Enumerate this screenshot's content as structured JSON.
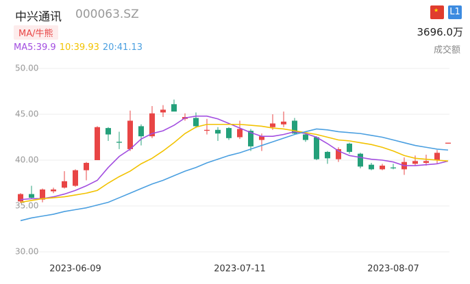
{
  "header": {
    "name": "中兴通讯",
    "code": "000063.SZ",
    "badge": "MA/牛熊",
    "level": "L1",
    "volume": "3696.0万",
    "volume_label": "成交额"
  },
  "chart_data": {
    "type": "candlestick",
    "categories": [
      null,
      null,
      null,
      null,
      null,
      "2023-06-09",
      null,
      null,
      null,
      null,
      null,
      null,
      null,
      null,
      null,
      null,
      null,
      null,
      null,
      null,
      "2023-07-11",
      null,
      null,
      null,
      null,
      null,
      null,
      null,
      null,
      null,
      null,
      null,
      null,
      null,
      "2023-08-07",
      null,
      null,
      null,
      null,
      null
    ],
    "up_color": "#e84545",
    "down_color": "#24a07a",
    "ohlc": [
      [
        35.5,
        36.4,
        35.3,
        36.3
      ],
      [
        36.3,
        37.2,
        35.8,
        35.9
      ],
      [
        35.7,
        36.9,
        35.4,
        36.8
      ],
      [
        36.6,
        37.0,
        36.4,
        36.8
      ],
      [
        37.0,
        38.8,
        36.9,
        37.7
      ],
      [
        37.2,
        39.0,
        37.1,
        38.9
      ],
      [
        38.9,
        39.8,
        37.8,
        39.7
      ],
      [
        40.0,
        43.7,
        40.0,
        43.6
      ],
      [
        43.5,
        43.6,
        42.1,
        42.8
      ],
      [
        42.0,
        43.1,
        41.2,
        41.9
      ],
      [
        41.2,
        45.4,
        41.0,
        44.3
      ],
      [
        43.7,
        43.9,
        41.6,
        42.6
      ],
      [
        42.6,
        45.9,
        42.4,
        45.1
      ],
      [
        45.2,
        46.0,
        44.7,
        45.5
      ],
      [
        46.1,
        46.6,
        45.3,
        45.3
      ],
      [
        44.5,
        45.1,
        44.3,
        44.7
      ],
      [
        44.6,
        45.2,
        43.5,
        43.7
      ],
      [
        43.2,
        44.5,
        42.8,
        43.3
      ],
      [
        43.3,
        43.6,
        42.1,
        42.9
      ],
      [
        43.5,
        43.6,
        42.2,
        42.4
      ],
      [
        42.5,
        44.3,
        42.3,
        43.4
      ],
      [
        43.2,
        43.4,
        41.0,
        41.5
      ],
      [
        42.2,
        42.9,
        41.0,
        42.6
      ],
      [
        43.6,
        45.0,
        43.3,
        44.0
      ],
      [
        43.9,
        45.3,
        43.6,
        44.2
      ],
      [
        44.3,
        44.6,
        42.8,
        42.9
      ],
      [
        42.8,
        43.0,
        42.0,
        42.2
      ],
      [
        42.5,
        42.6,
        40.0,
        40.1
      ],
      [
        40.9,
        41.0,
        39.6,
        40.2
      ],
      [
        40.1,
        41.4,
        39.8,
        41.2
      ],
      [
        41.8,
        41.9,
        40.7,
        40.9
      ],
      [
        40.7,
        40.8,
        39.1,
        39.3
      ],
      [
        39.5,
        39.7,
        38.9,
        39.0
      ],
      [
        39.0,
        39.6,
        38.9,
        39.4
      ],
      [
        39.2,
        39.6,
        39.0,
        39.1
      ],
      [
        39.0,
        40.3,
        38.4,
        39.8
      ],
      [
        39.6,
        40.5,
        39.4,
        39.9
      ],
      [
        39.7,
        40.6,
        39.4,
        39.9
      ],
      [
        40.0,
        41.1,
        39.6,
        40.8
      ],
      [
        41.8,
        41.9,
        41.8,
        41.9
      ]
    ],
    "series": [
      {
        "name": "MA5:39.9",
        "color": "#a24de0",
        "values": [
          35.7,
          35.8,
          35.8,
          36.0,
          36.3,
          36.7,
          37.2,
          37.8,
          39.2,
          40.4,
          41.2,
          42.3,
          42.9,
          43.2,
          43.8,
          44.6,
          44.8,
          44.8,
          44.5,
          44.0,
          43.5,
          43.0,
          42.6,
          42.6,
          42.8,
          43.1,
          42.9,
          42.5,
          41.8,
          41.0,
          40.5,
          40.3,
          40.1,
          40.0,
          39.8,
          39.4,
          39.4,
          39.5,
          39.6,
          39.9
        ]
      },
      {
        "name": "10:39.93",
        "color": "#f2c200",
        "values": [
          35.4,
          35.6,
          35.8,
          35.9,
          36.0,
          36.2,
          36.4,
          36.7,
          37.5,
          38.2,
          38.8,
          39.6,
          40.2,
          41.0,
          41.9,
          42.9,
          43.6,
          43.9,
          43.9,
          43.9,
          43.9,
          43.8,
          43.7,
          43.5,
          43.4,
          43.2,
          43.0,
          42.8,
          42.5,
          42.2,
          42.1,
          41.9,
          41.7,
          41.4,
          41.0,
          40.5,
          40.2,
          40.1,
          40.0,
          39.9
        ]
      },
      {
        "name": "20:41.13",
        "color": "#4a9fe0",
        "values": [
          33.4,
          33.7,
          33.9,
          34.1,
          34.4,
          34.6,
          34.8,
          35.1,
          35.4,
          35.9,
          36.4,
          36.9,
          37.4,
          37.8,
          38.3,
          38.8,
          39.2,
          39.7,
          40.1,
          40.5,
          40.8,
          41.2,
          41.6,
          42.0,
          42.4,
          42.8,
          43.1,
          43.4,
          43.3,
          43.1,
          43.0,
          42.9,
          42.7,
          42.5,
          42.2,
          41.9,
          41.6,
          41.4,
          41.2,
          41.1
        ]
      }
    ],
    "ylim": [
      30,
      50
    ],
    "yticks": [
      {
        "value": 30,
        "label": "30.00"
      },
      {
        "value": 35,
        "label": "35.00"
      },
      {
        "value": 40,
        "label": "40.00"
      },
      {
        "value": 45,
        "label": "45.00"
      },
      {
        "value": 50,
        "label": "50.00"
      }
    ],
    "grid": true
  }
}
